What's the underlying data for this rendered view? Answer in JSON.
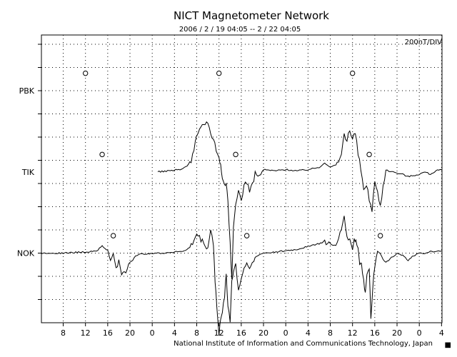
{
  "chart_data": {
    "type": "line",
    "title": "NICT Magnetometer Network",
    "subtitle": "2006 / 2 / 19   04:05 -- 2 / 22   04:05",
    "scale_label": "200nT/DIV",
    "credit": "National Institute of Information and Communications Technology, Japan",
    "corner_mark": "■",
    "x_tick_labels": [
      "8",
      "12",
      "16",
      "20",
      "0",
      "4",
      "8",
      "12",
      "16",
      "20",
      "0",
      "4",
      "8",
      "12",
      "16",
      "20",
      "0",
      "4"
    ],
    "x_unit": "hours (UT)",
    "xlim": [
      4.083,
      76.083
    ],
    "grid": true,
    "y_unit": "divisions (200 nT each)",
    "series": [
      {
        "name": "PBK",
        "baseline_div": 10,
        "markers_x": [
          12,
          36,
          60
        ],
        "values": []
      },
      {
        "name": "TIK",
        "baseline_div": 6.5,
        "markers_x": [
          15,
          39,
          63
        ],
        "x": [
          25.0,
          27.0,
          29.0,
          30.0,
          31.0,
          32.0,
          33.0,
          34.0,
          34.5,
          35.0,
          35.5,
          36.0,
          36.3,
          36.6,
          37.0,
          37.3,
          37.6,
          38.0,
          38.3,
          38.6,
          39.0,
          39.5,
          40.0,
          40.5,
          41.0,
          41.5,
          42.0,
          42.5,
          43.0,
          43.5,
          44.0,
          46.0,
          48.0,
          50.0,
          52.0,
          54.0,
          55.0,
          56.0,
          57.0,
          57.5,
          58.0,
          58.5,
          59.0,
          59.5,
          60.0,
          60.5,
          61.0,
          61.5,
          62.0,
          62.5,
          63.0,
          63.5,
          64.0,
          64.5,
          65.0,
          65.5,
          66.0,
          67.0,
          68.0,
          69.0,
          70.0,
          71.0,
          72.0,
          73.0,
          74.0,
          75.0,
          76.0
        ],
        "values": [
          0.0,
          0.05,
          0.1,
          0.2,
          0.5,
          1.5,
          2.0,
          2.2,
          1.6,
          1.5,
          1.0,
          0.6,
          0.3,
          -0.2,
          -0.6,
          -0.4,
          -1.3,
          -3.0,
          -4.5,
          -2.5,
          -1.5,
          -0.8,
          -1.2,
          -0.6,
          -0.4,
          -0.8,
          -0.6,
          0.0,
          -0.2,
          -0.1,
          0.1,
          0.05,
          0.1,
          0.05,
          0.1,
          0.2,
          0.4,
          0.2,
          0.3,
          0.5,
          0.8,
          1.6,
          1.3,
          1.8,
          1.4,
          1.7,
          0.8,
          0.1,
          -0.8,
          -0.5,
          -1.2,
          -1.6,
          -0.4,
          -0.9,
          -1.5,
          -0.6,
          0.1,
          0.0,
          -0.05,
          -0.1,
          -0.2,
          -0.15,
          -0.1,
          0.0,
          -0.1,
          0.05,
          0.1
        ]
      },
      {
        "name": "NOK",
        "baseline_div": 3,
        "markers_x": [
          17,
          41,
          65
        ],
        "x": [
          4.1,
          8.0,
          12.0,
          14.0,
          15.0,
          15.5,
          16.0,
          16.5,
          17.0,
          17.5,
          18.0,
          18.5,
          19.0,
          19.5,
          20.0,
          20.5,
          21.0,
          22.0,
          24.0,
          26.0,
          28.0,
          30.0,
          31.0,
          32.0,
          33.0,
          34.0,
          34.5,
          35.0,
          35.3,
          35.6,
          36.0,
          36.3,
          36.6,
          37.0,
          37.3,
          37.6,
          38.0,
          38.3,
          38.6,
          39.0,
          39.5,
          40.0,
          40.5,
          41.0,
          41.5,
          42.0,
          42.5,
          43.0,
          44.0,
          46.0,
          48.0,
          50.0,
          52.0,
          54.0,
          55.0,
          56.0,
          57.0,
          57.5,
          58.0,
          58.5,
          59.0,
          59.5,
          60.0,
          60.3,
          60.6,
          61.0,
          61.3,
          61.6,
          62.0,
          62.3,
          62.6,
          63.0,
          63.3,
          63.6,
          64.0,
          64.5,
          65.0,
          65.5,
          66.0,
          67.0,
          68.0,
          69.0,
          70.0,
          71.0,
          72.0,
          73.0,
          74.0,
          75.0,
          76.0
        ],
        "values": [
          0.0,
          0.0,
          0.05,
          0.1,
          0.3,
          0.2,
          0.1,
          -0.3,
          -0.1,
          -0.6,
          -0.4,
          -1.0,
          -0.8,
          -0.7,
          -0.4,
          -0.3,
          -0.1,
          -0.05,
          0.0,
          0.0,
          0.05,
          0.1,
          0.3,
          0.8,
          0.5,
          0.2,
          1.0,
          0.4,
          -1.2,
          -2.3,
          -3.6,
          -2.8,
          -2.5,
          -1.8,
          -1.0,
          -2.2,
          -3.0,
          -1.2,
          -0.8,
          -0.5,
          -1.6,
          -1.1,
          -0.7,
          -0.4,
          -0.7,
          -0.5,
          -0.2,
          -0.1,
          0.0,
          0.05,
          0.1,
          0.15,
          0.3,
          0.4,
          0.5,
          0.4,
          0.3,
          0.6,
          1.0,
          1.6,
          0.8,
          0.5,
          0.2,
          0.6,
          0.5,
          0.2,
          -0.5,
          -0.4,
          -1.2,
          -1.8,
          -0.8,
          -0.6,
          -2.8,
          -1.6,
          -0.5,
          0.1,
          0.0,
          -0.3,
          -0.4,
          -0.2,
          0.0,
          -0.1,
          -0.3,
          -0.1,
          0.0,
          -0.05,
          0.1,
          0.05,
          0.1
        ]
      }
    ]
  }
}
